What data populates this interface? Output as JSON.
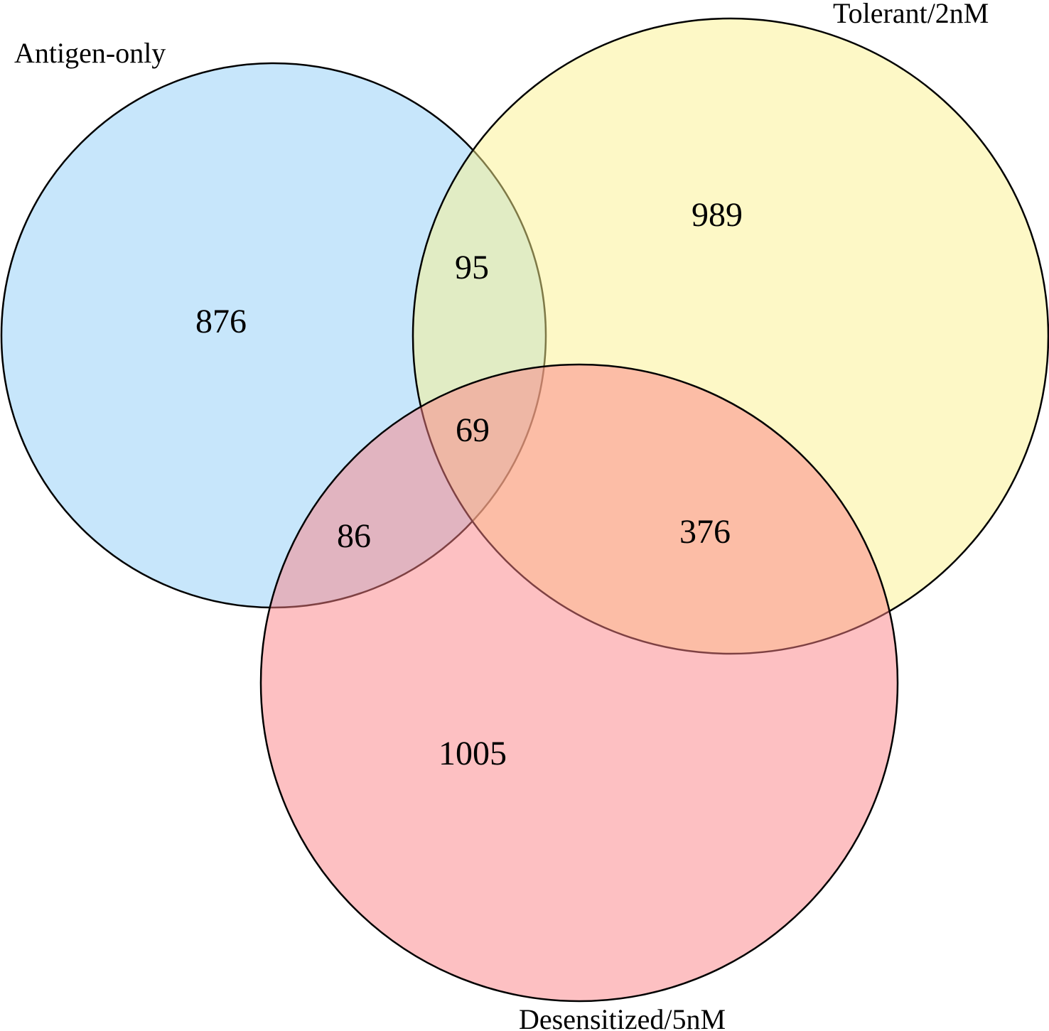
{
  "sets": [
    {
      "id": "A",
      "label": "Antigen-only",
      "color": "#8fcdf8"
    },
    {
      "id": "T",
      "label": "Tolerant/2nM",
      "color": "#fcf18e"
    },
    {
      "id": "D",
      "label": "Desensitized/5nM",
      "color": "#fb8186"
    }
  ],
  "regions": {
    "A_only": "876",
    "T_only": "989",
    "D_only": "1005",
    "A_T": "95",
    "A_D": "86",
    "T_D": "376",
    "A_T_D": "69"
  },
  "style": {
    "stroke": "#000000",
    "fill_opacity": 0.5
  }
}
